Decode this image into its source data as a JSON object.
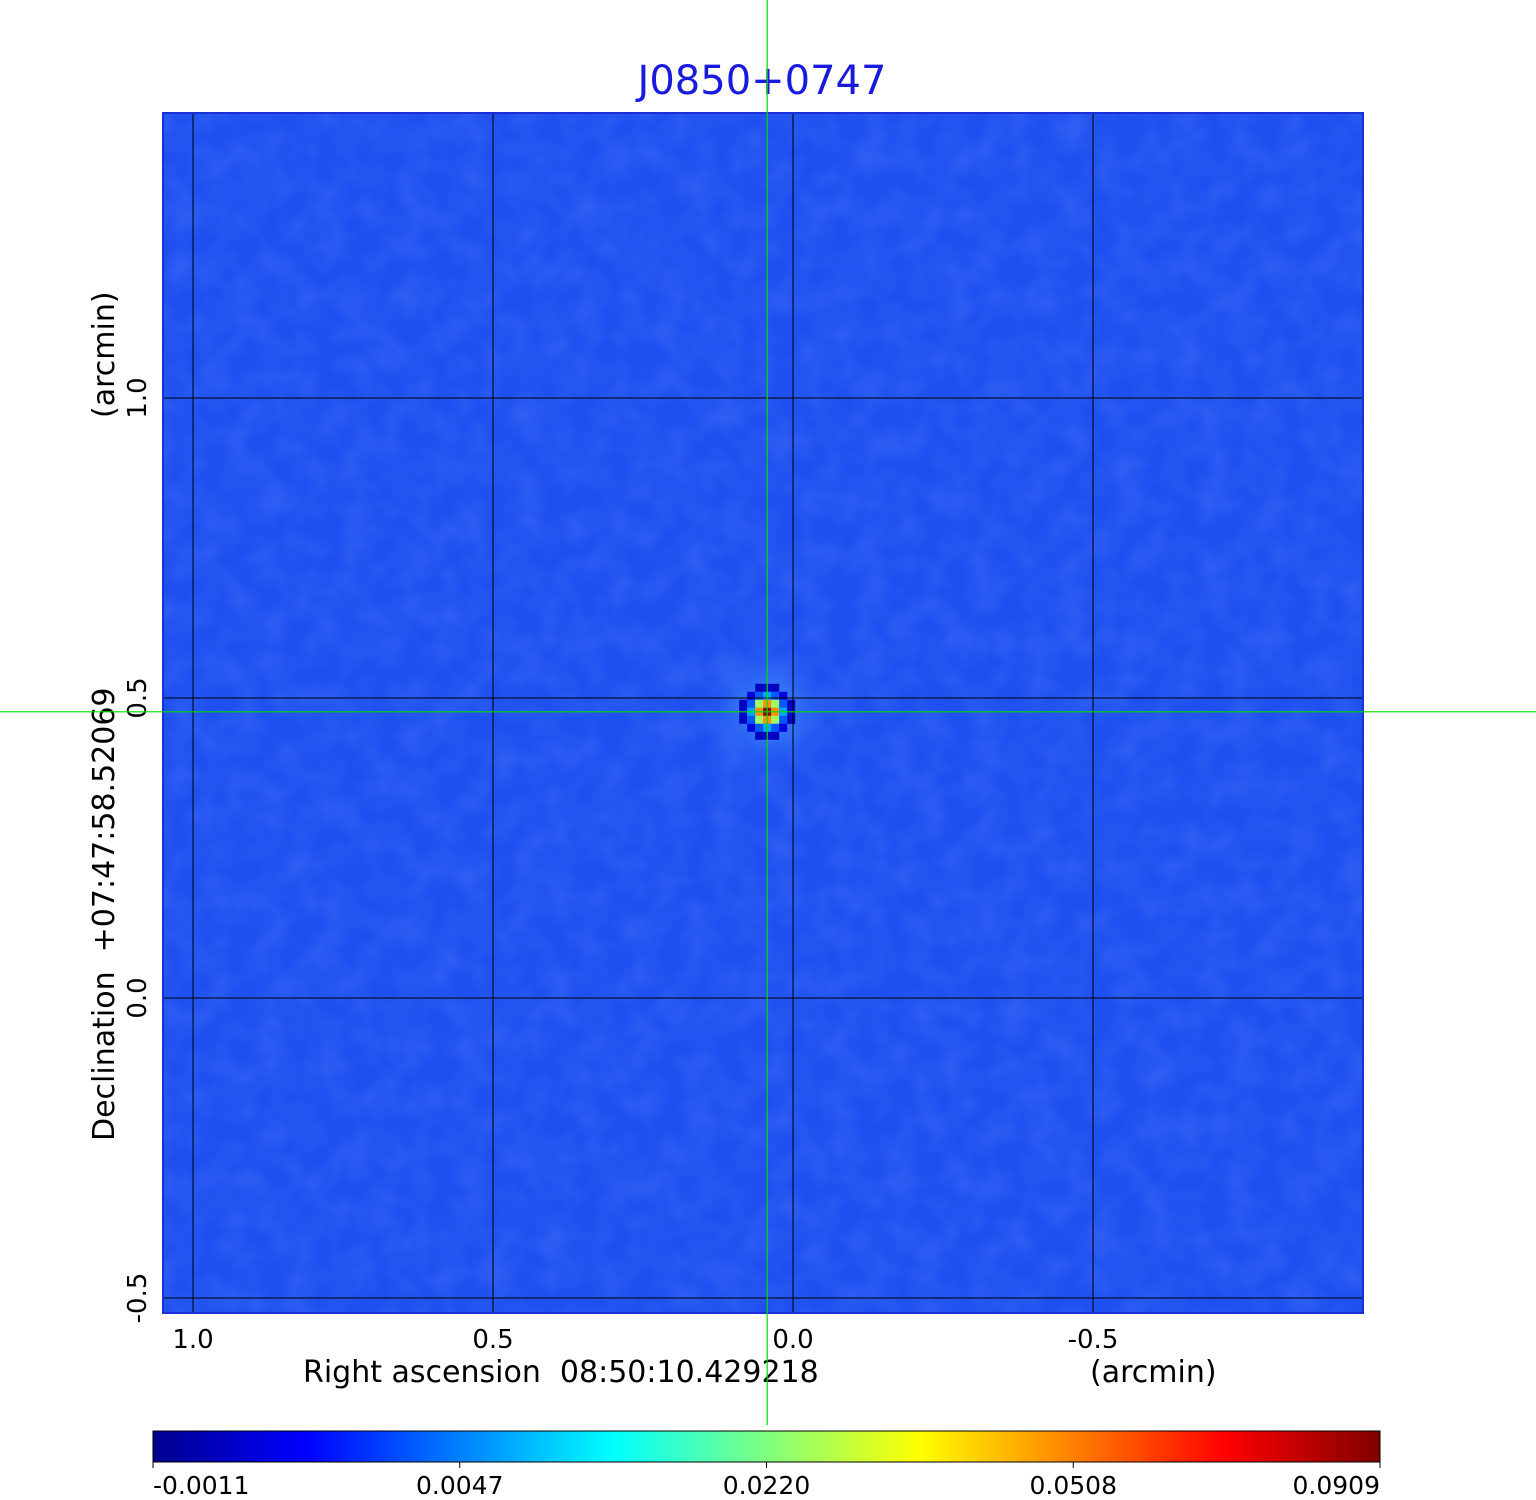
{
  "chart_data": {
    "type": "heatmap",
    "title": "J0850+0747",
    "xlabel": "Right ascension  08:50:10.429218",
    "xunit": "(arcmin)",
    "ylabel": "Declination  +07:47:58.52069",
    "yunit": "(arcmin)",
    "x_ticks": [
      "1.0",
      "0.5",
      "0.0",
      "-0.5"
    ],
    "x_tick_values": [
      1.0,
      0.5,
      0.0,
      -0.5
    ],
    "y_ticks": [
      "1.0",
      "0.5",
      "0.0",
      "-0.5"
    ],
    "y_tick_values": [
      1.0,
      0.5,
      0.0,
      -0.5
    ],
    "xlim": [
      1.05,
      -0.95
    ],
    "ylim": [
      -0.525,
      1.475
    ],
    "grid": true,
    "crosshair": {
      "x": 0.043,
      "y": 0.477,
      "color": "#00dd00"
    },
    "source_peak": {
      "x": 0.043,
      "y": 0.477,
      "value": 0.0909
    },
    "colormap": "jet",
    "colorbar": {
      "ticks": [
        "-0.0011",
        "0.0047",
        "0.0220",
        "0.0508",
        "0.0909"
      ],
      "tick_values": [
        -0.0011,
        0.0047,
        0.022,
        0.0508,
        0.0909
      ],
      "colors": [
        "#00008f",
        "#0000ff",
        "#00ffff",
        "#ffff00",
        "#ff0000",
        "#800000"
      ]
    },
    "background_color": "#1f4fef"
  }
}
